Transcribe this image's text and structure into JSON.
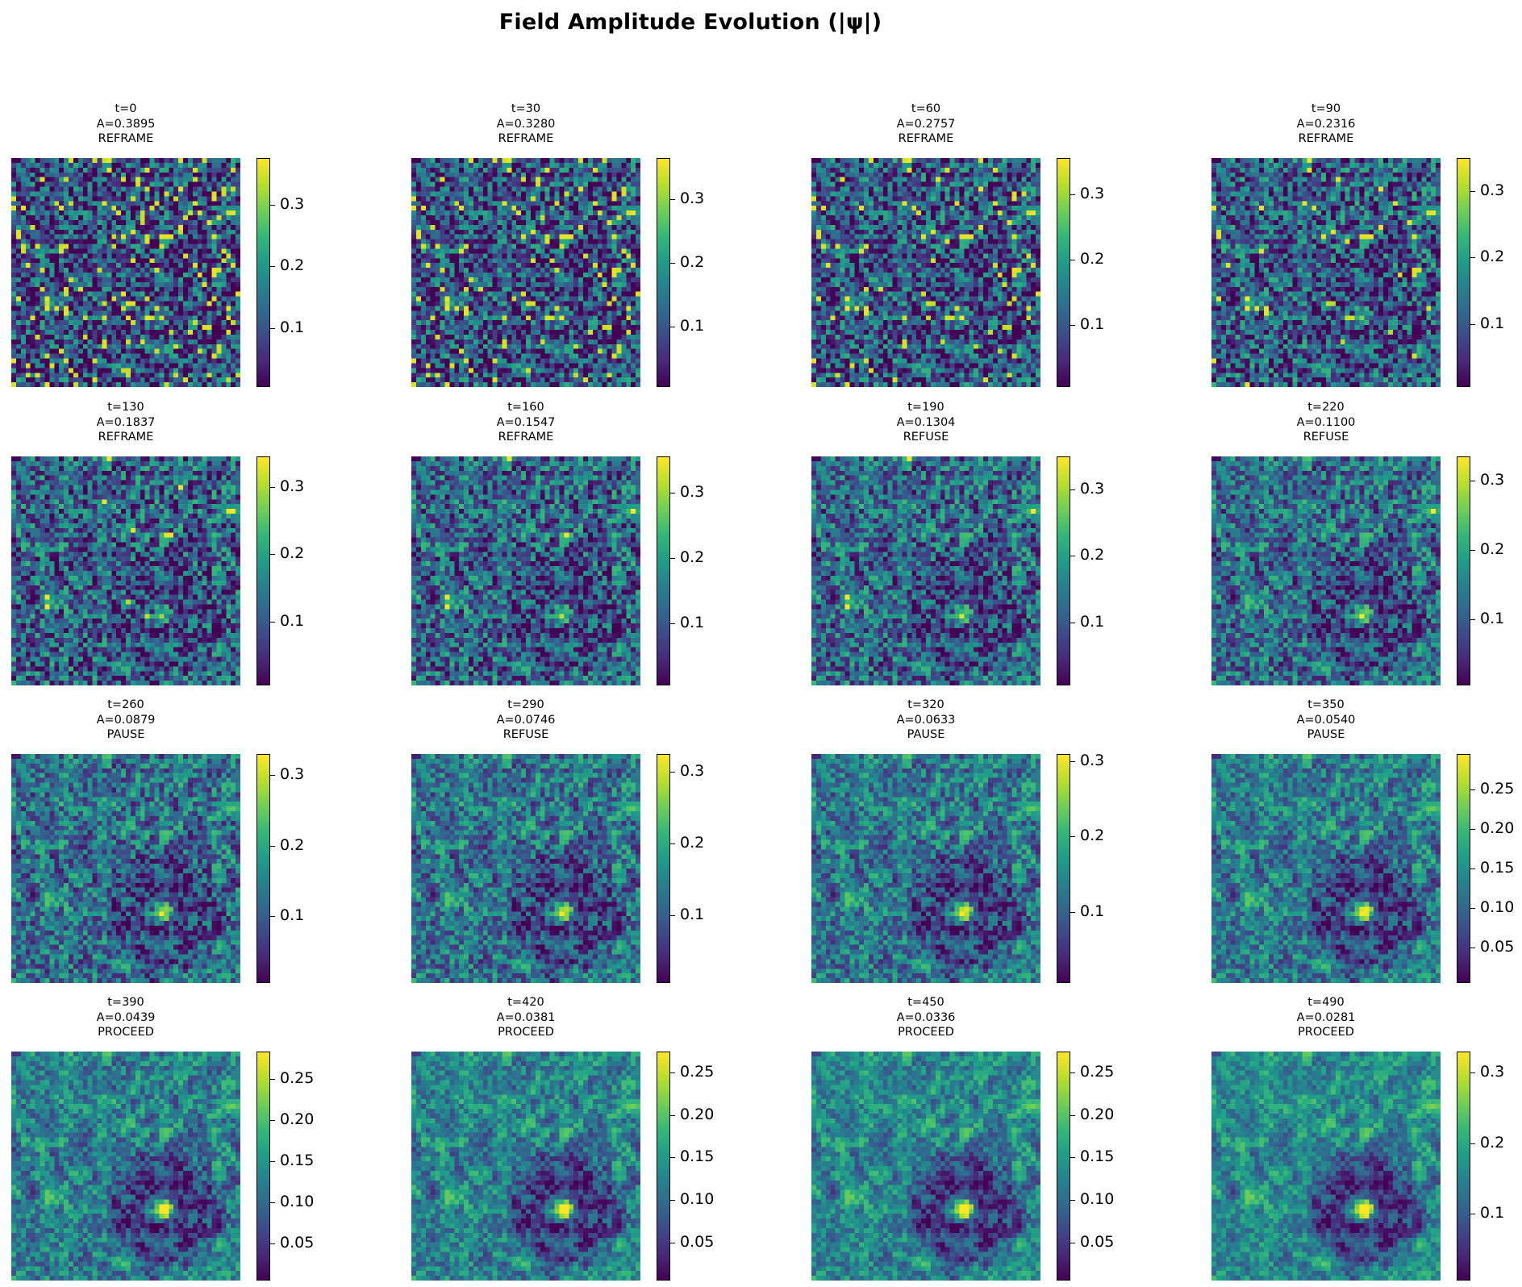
{
  "title": "Field Amplitude Evolution (|ψ|)",
  "chart_data": [
    {
      "type": "heatmap",
      "time_label": "t=0",
      "amp_label": "A=0.3895",
      "action": "REFRAME",
      "t": 0,
      "A": 0.3895,
      "vmax": 0.375,
      "cbar_ticks": [
        0.1,
        0.2,
        0.3
      ],
      "cbar_labels": [
        "0.1",
        "0.2",
        "0.3"
      ]
    },
    {
      "type": "heatmap",
      "time_label": "t=30",
      "amp_label": "A=0.3280",
      "action": "REFRAME",
      "t": 30,
      "A": 0.328,
      "vmax": 0.365,
      "cbar_ticks": [
        0.1,
        0.2,
        0.3
      ],
      "cbar_labels": [
        "0.1",
        "0.2",
        "0.3"
      ]
    },
    {
      "type": "heatmap",
      "time_label": "t=60",
      "amp_label": "A=0.2757",
      "action": "REFRAME",
      "t": 60,
      "A": 0.2757,
      "vmax": 0.355,
      "cbar_ticks": [
        0.1,
        0.2,
        0.3
      ],
      "cbar_labels": [
        "0.1",
        "0.2",
        "0.3"
      ]
    },
    {
      "type": "heatmap",
      "time_label": "t=90",
      "amp_label": "A=0.2316",
      "action": "REFRAME",
      "t": 90,
      "A": 0.2316,
      "vmax": 0.35,
      "cbar_ticks": [
        0.1,
        0.2,
        0.3
      ],
      "cbar_labels": [
        "0.1",
        "0.2",
        "0.3"
      ]
    },
    {
      "type": "heatmap",
      "time_label": "t=130",
      "amp_label": "A=0.1837",
      "action": "REFRAME",
      "t": 130,
      "A": 0.1837,
      "vmax": 0.345,
      "cbar_ticks": [
        0.1,
        0.2,
        0.3
      ],
      "cbar_labels": [
        "0.1",
        "0.2",
        "0.3"
      ]
    },
    {
      "type": "heatmap",
      "time_label": "t=160",
      "amp_label": "A=0.1547",
      "action": "REFRAME",
      "t": 160,
      "A": 0.1547,
      "vmax": 0.355,
      "cbar_ticks": [
        0.1,
        0.2,
        0.3
      ],
      "cbar_labels": [
        "0.1",
        "0.2",
        "0.3"
      ]
    },
    {
      "type": "heatmap",
      "time_label": "t=190",
      "amp_label": "A=0.1304",
      "action": "REFUSE",
      "t": 190,
      "A": 0.1304,
      "vmax": 0.35,
      "cbar_ticks": [
        0.1,
        0.2,
        0.3
      ],
      "cbar_labels": [
        "0.1",
        "0.2",
        "0.3"
      ]
    },
    {
      "type": "heatmap",
      "time_label": "t=220",
      "amp_label": "A=0.1100",
      "action": "REFUSE",
      "t": 220,
      "A": 0.11,
      "vmax": 0.335,
      "cbar_ticks": [
        0.1,
        0.2,
        0.3
      ],
      "cbar_labels": [
        "0.1",
        "0.2",
        "0.3"
      ]
    },
    {
      "type": "heatmap",
      "time_label": "t=260",
      "amp_label": "A=0.0879",
      "action": "PAUSE",
      "t": 260,
      "A": 0.0879,
      "vmax": 0.33,
      "cbar_ticks": [
        0.1,
        0.2,
        0.3
      ],
      "cbar_labels": [
        "0.1",
        "0.2",
        "0.3"
      ]
    },
    {
      "type": "heatmap",
      "time_label": "t=290",
      "amp_label": "A=0.0746",
      "action": "REFUSE",
      "t": 290,
      "A": 0.0746,
      "vmax": 0.325,
      "cbar_ticks": [
        0.1,
        0.2,
        0.3
      ],
      "cbar_labels": [
        "0.1",
        "0.2",
        "0.3"
      ]
    },
    {
      "type": "heatmap",
      "time_label": "t=320",
      "amp_label": "A=0.0633",
      "action": "PAUSE",
      "t": 320,
      "A": 0.0633,
      "vmax": 0.31,
      "cbar_ticks": [
        0.1,
        0.2,
        0.3
      ],
      "cbar_labels": [
        "0.1",
        "0.2",
        "0.3"
      ]
    },
    {
      "type": "heatmap",
      "time_label": "t=350",
      "amp_label": "A=0.0540",
      "action": "PAUSE",
      "t": 350,
      "A": 0.054,
      "vmax": 0.295,
      "cbar_ticks": [
        0.05,
        0.1,
        0.15,
        0.2,
        0.25
      ],
      "cbar_labels": [
        "0.05",
        "0.10",
        "0.15",
        "0.20",
        "0.25"
      ]
    },
    {
      "type": "heatmap",
      "time_label": "t=390",
      "amp_label": "A=0.0439",
      "action": "PROCEED",
      "t": 390,
      "A": 0.0439,
      "vmax": 0.283,
      "cbar_ticks": [
        0.05,
        0.1,
        0.15,
        0.2,
        0.25
      ],
      "cbar_labels": [
        "0.05",
        "0.10",
        "0.15",
        "0.20",
        "0.25"
      ]
    },
    {
      "type": "heatmap",
      "time_label": "t=420",
      "amp_label": "A=0.0381",
      "action": "PROCEED",
      "t": 420,
      "A": 0.0381,
      "vmax": 0.275,
      "cbar_ticks": [
        0.05,
        0.1,
        0.15,
        0.2,
        0.25
      ],
      "cbar_labels": [
        "0.05",
        "0.10",
        "0.15",
        "0.20",
        "0.25"
      ]
    },
    {
      "type": "heatmap",
      "time_label": "t=450",
      "amp_label": "A=0.0336",
      "action": "PROCEED",
      "t": 450,
      "A": 0.0336,
      "vmax": 0.275,
      "cbar_ticks": [
        0.05,
        0.1,
        0.15,
        0.2,
        0.25
      ],
      "cbar_labels": [
        "0.05",
        "0.10",
        "0.15",
        "0.20",
        "0.25"
      ]
    },
    {
      "type": "heatmap",
      "time_label": "t=490",
      "amp_label": "A=0.0281",
      "action": "PROCEED",
      "t": 490,
      "A": 0.0281,
      "vmax": 0.33,
      "cbar_ticks": [
        0.1,
        0.2,
        0.3
      ],
      "cbar_labels": [
        "0.1",
        "0.2",
        "0.3"
      ]
    }
  ],
  "colormap": "viridis",
  "vmin": 0.005
}
